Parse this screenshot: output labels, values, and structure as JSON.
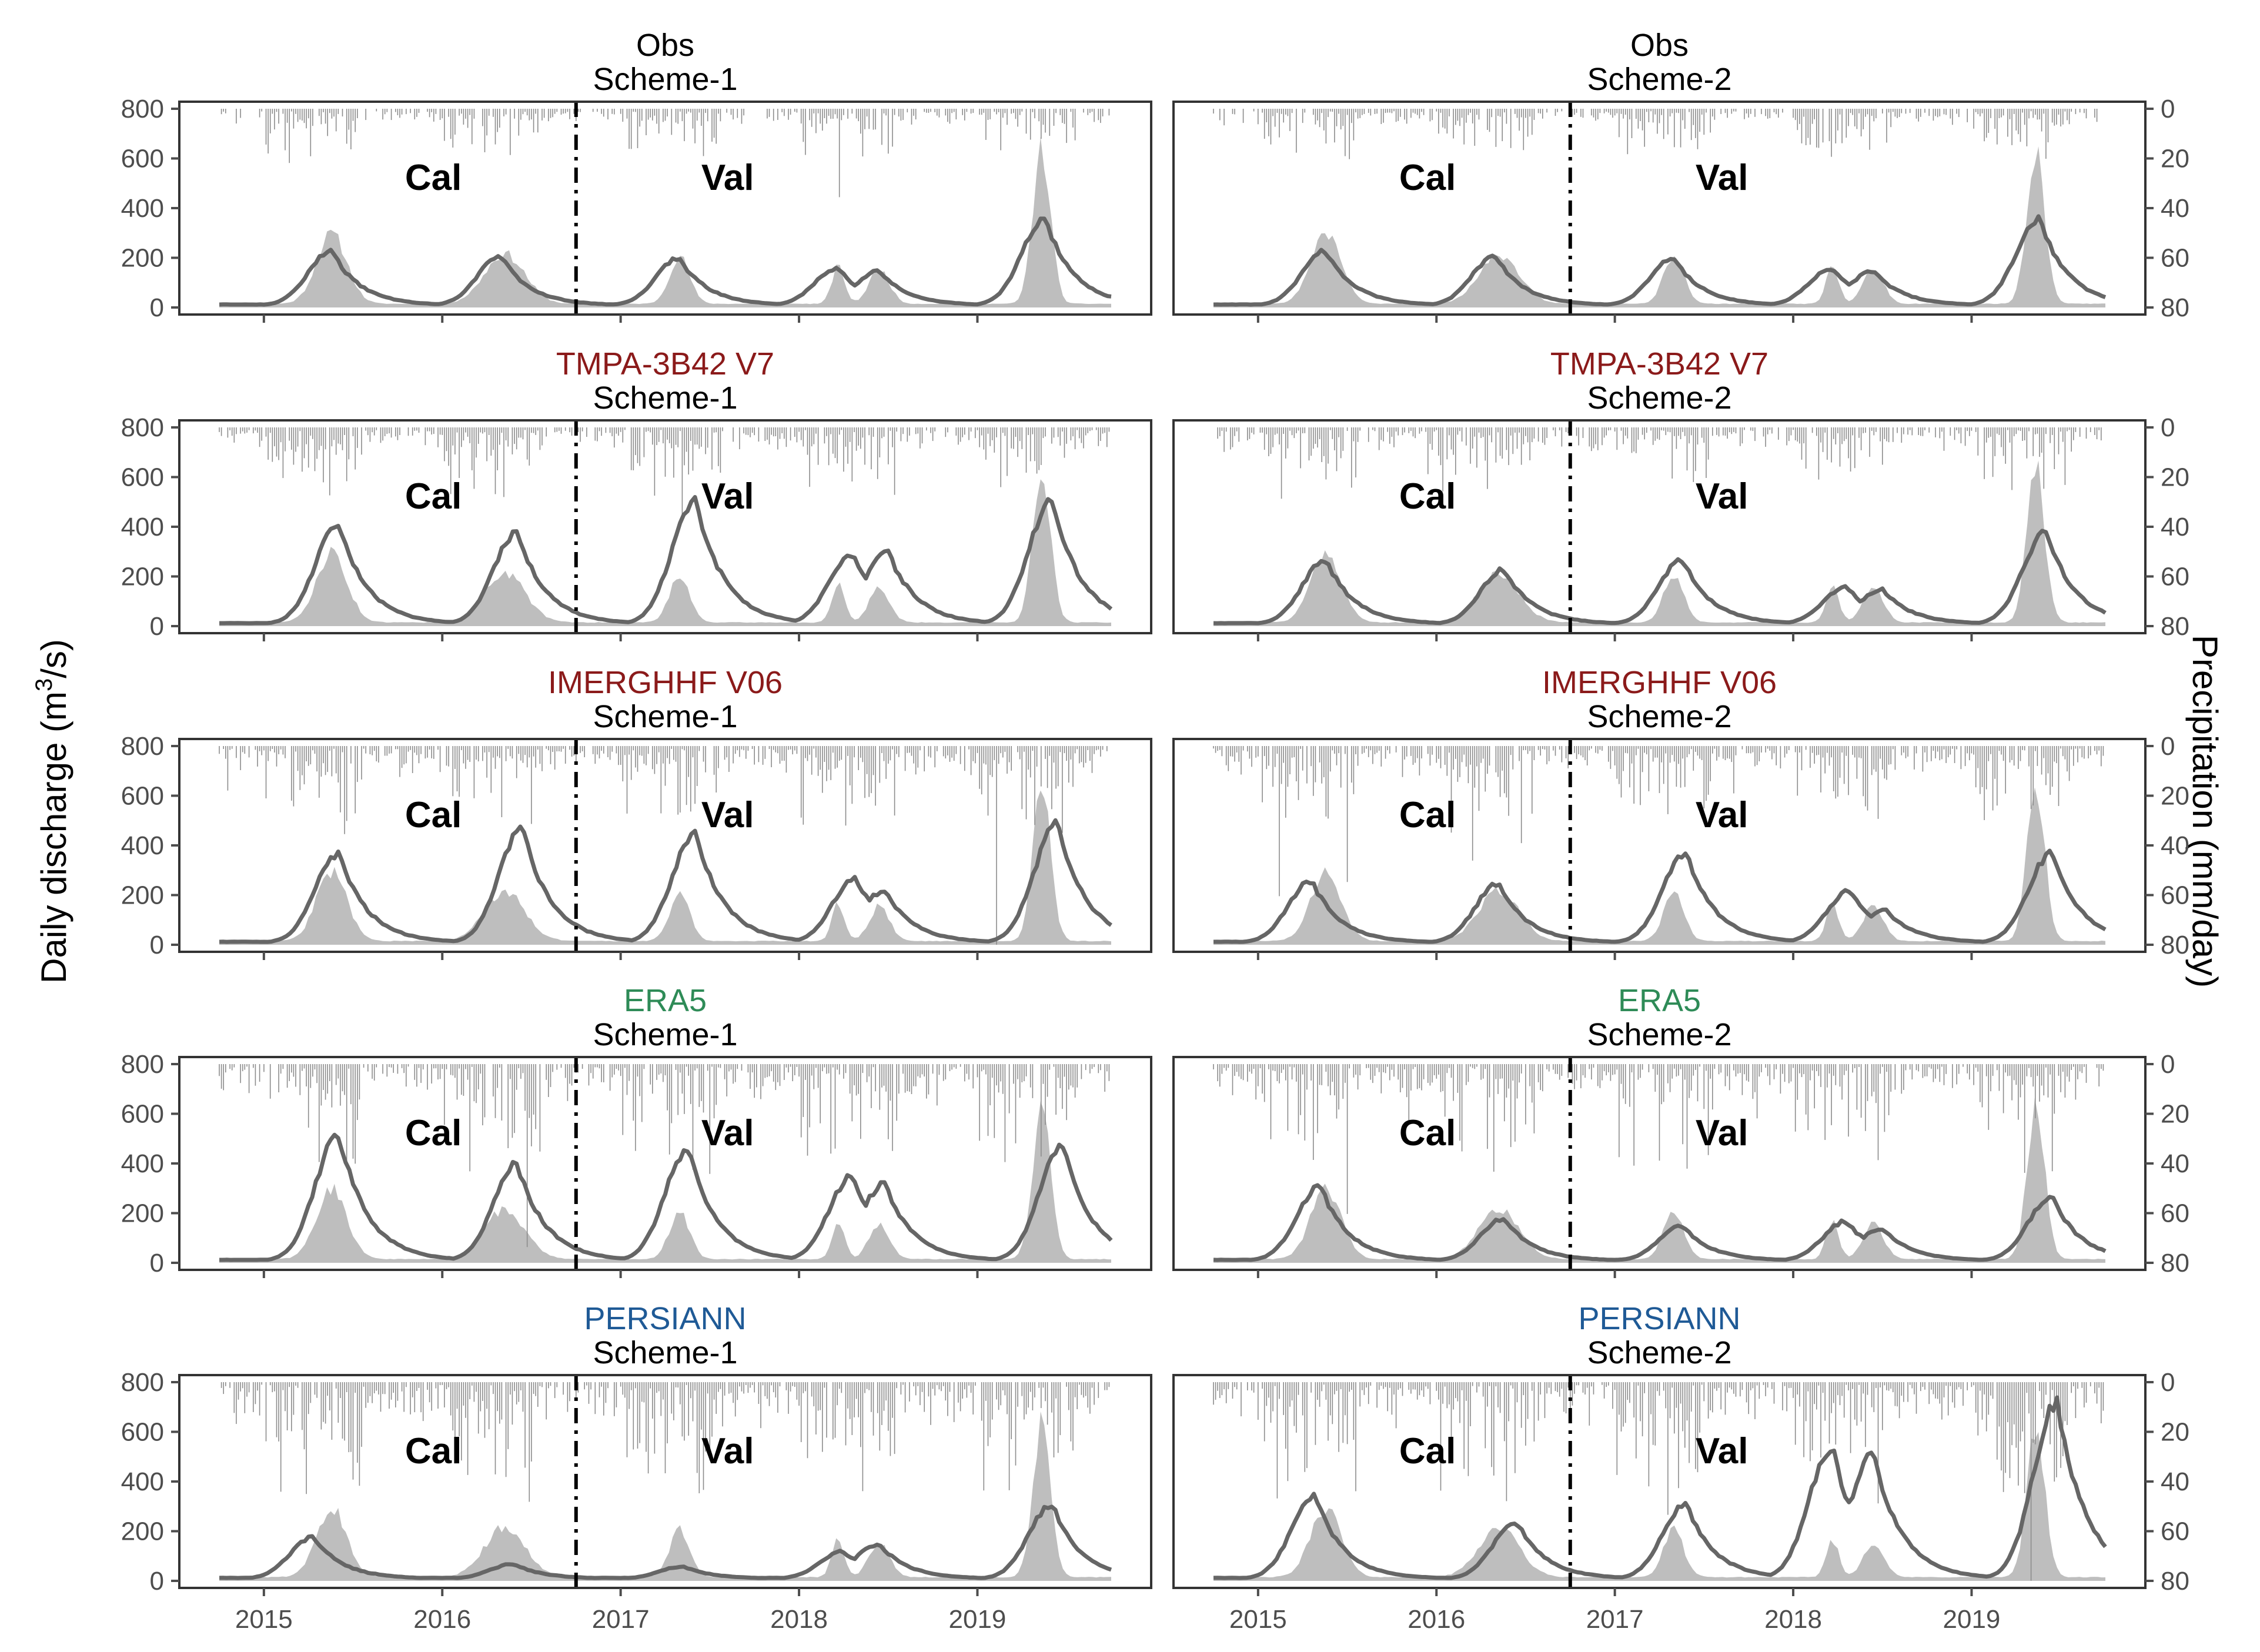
{
  "figure": {
    "y_axis_label_main": "Daily discharge (m",
    "y_axis_label_sup": "3",
    "y_axis_label_tail": "/s)",
    "y2_axis_label": "Precipitation (mm/day)"
  },
  "chart_data": {
    "type": "line",
    "description_series": [
      "observed discharge (grey area)",
      "simulated discharge (dark line)",
      "daily precipitation (inverted bars)"
    ],
    "x_range": [
      2014.75,
      2019.75
    ],
    "xticks": [
      2015,
      2016,
      2017,
      2018,
      2019
    ],
    "xtick_labels": [
      "2015",
      "2016",
      "2017",
      "2018",
      "2019"
    ],
    "ylim": [
      0,
      800
    ],
    "yticks": [
      0,
      200,
      400,
      600,
      800
    ],
    "ytick_labels": [
      "0",
      "200",
      "400",
      "600",
      "800"
    ],
    "y2lim": [
      0,
      80
    ],
    "y2ticks": [
      0,
      20,
      40,
      60,
      80
    ],
    "y2tick_labels": [
      "0",
      "20",
      "40",
      "60",
      "80"
    ],
    "split_date": 2016.75,
    "cal_label": "Cal",
    "val_label": "Val",
    "schemes": [
      "Scheme-1",
      "Scheme-2"
    ],
    "colors": {
      "observed_area": "#bebebe",
      "simulated_line": "#666666",
      "precip_bars": "#8c8c8c",
      "frame": "#333333",
      "tick": "#4d4d4d"
    },
    "datasets": [
      {
        "name": "Obs",
        "color": "#000000"
      },
      {
        "name": "TMPA-3B42 V7",
        "color": "#8b1a1a"
      },
      {
        "name": "IMERGHHF V06",
        "color": "#8b1a1a"
      },
      {
        "name": "ERA5",
        "color": "#2e8b57"
      },
      {
        "name": "PERSIANN",
        "color": "#1f5a96"
      }
    ],
    "observed_peaks": [
      {
        "t": 2015.38,
        "q": 280,
        "w": 0.12
      },
      {
        "t": 2016.35,
        "q": 200,
        "w": 0.16
      },
      {
        "t": 2017.33,
        "q": 190,
        "w": 0.08
      },
      {
        "t": 2018.22,
        "q": 150,
        "w": 0.05
      },
      {
        "t": 2018.45,
        "q": 140,
        "w": 0.08
      },
      {
        "t": 2019.36,
        "q": 620,
        "w": 0.07
      }
    ],
    "observed_base": 15,
    "simulated_peaks": [
      [
        [
          {
            "t": 2015.38,
            "q": 220
          },
          {
            "t": 2016.33,
            "q": 200
          },
          {
            "t": 2017.33,
            "q": 190
          },
          {
            "t": 2018.22,
            "q": 150
          },
          {
            "t": 2018.45,
            "q": 140
          },
          {
            "t": 2019.38,
            "q": 350
          }
        ],
        [
          {
            "t": 2015.38,
            "q": 220
          },
          {
            "t": 2016.33,
            "q": 200
          },
          {
            "t": 2017.33,
            "q": 190
          },
          {
            "t": 2018.22,
            "q": 150
          },
          {
            "t": 2018.45,
            "q": 140
          },
          {
            "t": 2019.38,
            "q": 350
          }
        ]
      ],
      [
        [
          {
            "t": 2015.42,
            "q": 400
          },
          {
            "t": 2016.42,
            "q": 370
          },
          {
            "t": 2017.42,
            "q": 500
          },
          {
            "t": 2018.3,
            "q": 280
          },
          {
            "t": 2018.5,
            "q": 290
          },
          {
            "t": 2019.42,
            "q": 500
          }
        ],
        [
          {
            "t": 2015.38,
            "q": 260
          },
          {
            "t": 2016.38,
            "q": 220
          },
          {
            "t": 2017.38,
            "q": 260
          },
          {
            "t": 2018.3,
            "q": 150
          },
          {
            "t": 2018.5,
            "q": 140
          },
          {
            "t": 2019.42,
            "q": 370
          }
        ]
      ],
      [
        [
          {
            "t": 2015.42,
            "q": 360
          },
          {
            "t": 2016.45,
            "q": 460
          },
          {
            "t": 2017.42,
            "q": 440
          },
          {
            "t": 2018.32,
            "q": 260
          },
          {
            "t": 2018.48,
            "q": 210
          },
          {
            "t": 2019.45,
            "q": 480
          }
        ],
        [
          {
            "t": 2015.3,
            "q": 250
          },
          {
            "t": 2016.35,
            "q": 240
          },
          {
            "t": 2017.4,
            "q": 360
          },
          {
            "t": 2018.32,
            "q": 210
          },
          {
            "t": 2018.52,
            "q": 130
          },
          {
            "t": 2019.45,
            "q": 360
          }
        ]
      ],
      [
        [
          {
            "t": 2015.42,
            "q": 510
          },
          {
            "t": 2016.42,
            "q": 390
          },
          {
            "t": 2017.38,
            "q": 450
          },
          {
            "t": 2018.3,
            "q": 340
          },
          {
            "t": 2018.48,
            "q": 310
          },
          {
            "t": 2019.48,
            "q": 460
          }
        ],
        [
          {
            "t": 2015.35,
            "q": 300
          },
          {
            "t": 2016.38,
            "q": 170
          },
          {
            "t": 2017.38,
            "q": 140
          },
          {
            "t": 2018.3,
            "q": 160
          },
          {
            "t": 2018.5,
            "q": 130
          },
          {
            "t": 2019.45,
            "q": 260
          }
        ]
      ],
      [
        [
          {
            "t": 2015.28,
            "q": 170
          },
          {
            "t": 2016.4,
            "q": 60
          },
          {
            "t": 2017.35,
            "q": 50
          },
          {
            "t": 2018.25,
            "q": 110
          },
          {
            "t": 2018.45,
            "q": 140
          },
          {
            "t": 2019.42,
            "q": 300
          }
        ],
        [
          {
            "t": 2015.32,
            "q": 330
          },
          {
            "t": 2016.45,
            "q": 230
          },
          {
            "t": 2017.4,
            "q": 300
          },
          {
            "t": 2018.22,
            "q": 530
          },
          {
            "t": 2018.45,
            "q": 500
          },
          {
            "t": 2019.48,
            "q": 710
          }
        ]
      ]
    ]
  }
}
